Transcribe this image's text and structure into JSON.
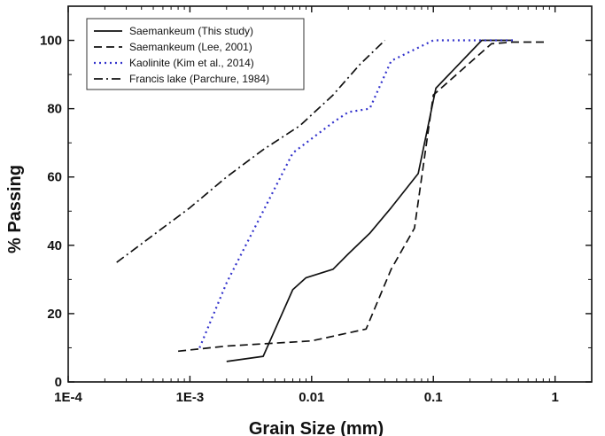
{
  "chart_data": {
    "type": "line",
    "title": "",
    "xlabel": "Grain Size (mm)",
    "ylabel": "% Passing",
    "xscale": "log",
    "xlim": [
      0.0001,
      2
    ],
    "ylim": [
      0,
      110
    ],
    "x_ticks": [
      0.0001,
      0.001,
      0.01,
      0.1,
      1
    ],
    "x_tick_labels": [
      "1E-4",
      "1E-3",
      "0.01",
      "0.1",
      "1"
    ],
    "y_ticks": [
      0,
      20,
      40,
      60,
      80,
      100
    ],
    "y_tick_labels": [
      "0",
      "20",
      "40",
      "60",
      "80",
      "100"
    ],
    "grid": false,
    "legend_position": "top-left",
    "series": [
      {
        "name": "Saemankeum (This study)",
        "style": "solid",
        "color": "#111111",
        "points": [
          [
            0.002,
            6
          ],
          [
            0.004,
            7.5
          ],
          [
            0.007,
            27
          ],
          [
            0.009,
            30.5
          ],
          [
            0.015,
            33
          ],
          [
            0.02,
            37.5
          ],
          [
            0.03,
            43.5
          ],
          [
            0.045,
            51
          ],
          [
            0.075,
            61
          ],
          [
            0.105,
            86
          ],
          [
            0.25,
            100
          ],
          [
            0.45,
            100
          ]
        ]
      },
      {
        "name": "Saemankeum (Lee, 2001)",
        "style": "dashed",
        "color": "#111111",
        "points": [
          [
            0.0008,
            9
          ],
          [
            0.002,
            10.5
          ],
          [
            0.01,
            12
          ],
          [
            0.028,
            15.5
          ],
          [
            0.045,
            33
          ],
          [
            0.07,
            45
          ],
          [
            0.1,
            84
          ],
          [
            0.3,
            99
          ],
          [
            0.45,
            99.5
          ],
          [
            0.85,
            99.5
          ]
        ]
      },
      {
        "name": "Kaolinite (Kim et al., 2014)",
        "style": "dotted",
        "color": "#3333cc",
        "points": [
          [
            0.0012,
            10
          ],
          [
            0.002,
            29
          ],
          [
            0.004,
            50
          ],
          [
            0.007,
            67
          ],
          [
            0.015,
            76
          ],
          [
            0.02,
            79
          ],
          [
            0.03,
            80
          ],
          [
            0.045,
            94
          ],
          [
            0.1,
            100
          ],
          [
            0.45,
            100
          ]
        ]
      },
      {
        "name": "Francis lake (Parchure, 1984)",
        "style": "dashdot",
        "color": "#111111",
        "points": [
          [
            0.00025,
            35
          ],
          [
            0.001,
            51
          ],
          [
            0.002,
            60
          ],
          [
            0.004,
            68
          ],
          [
            0.008,
            75
          ],
          [
            0.015,
            84
          ],
          [
            0.025,
            93
          ],
          [
            0.04,
            100
          ]
        ]
      }
    ]
  }
}
